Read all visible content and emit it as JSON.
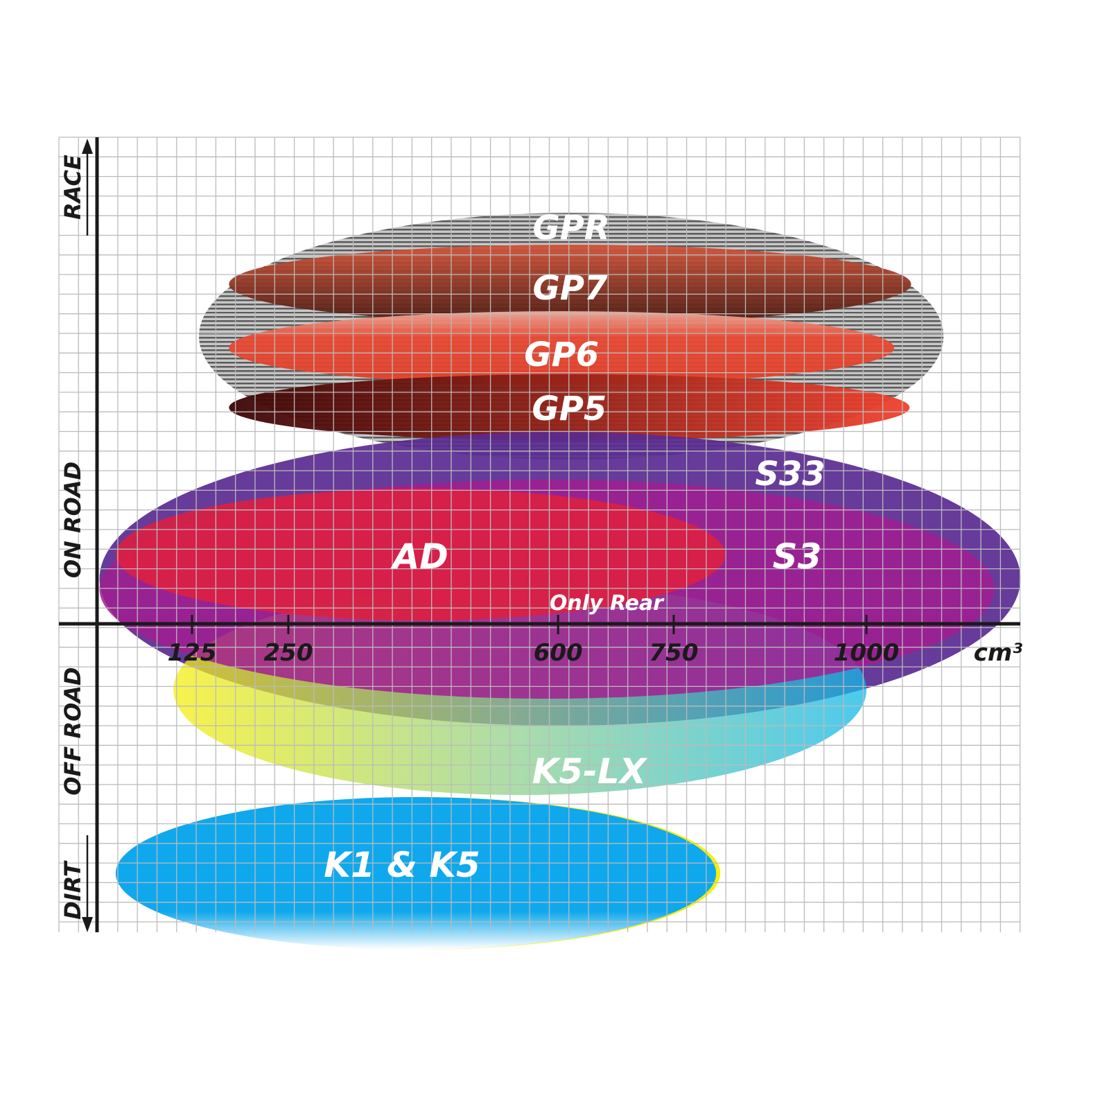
{
  "chart_data": {
    "type": "ellipse-range",
    "xlabel": "cm³",
    "x_ticks": [
      125,
      250,
      600,
      750,
      1000
    ],
    "y_categories": [
      "RACE",
      "ON ROAD",
      "OFF ROAD",
      "DIRT"
    ],
    "grid": true,
    "regions": [
      {
        "name": "GPR",
        "x_range": [
          134,
          1100
        ],
        "color": "#9a9a9a",
        "pattern": "hatched"
      },
      {
        "name": "GP7",
        "x_range": [
          173,
          1058
        ],
        "color": "#b8432f"
      },
      {
        "name": "GP6",
        "x_range": [
          173,
          1036
        ],
        "color": "#e5452f"
      },
      {
        "name": "GP5",
        "x_range": [
          173,
          1056
        ],
        "color": "#a01818"
      },
      {
        "name": "S33",
        "x_range": [
          5,
          1200
        ],
        "color": "#5a2a90"
      },
      {
        "name": "S3",
        "x_range": [
          5,
          1166
        ],
        "color": "#a0208f"
      },
      {
        "name": "AD",
        "x_range": [
          26,
          817
        ],
        "color": "#e01e3c"
      },
      {
        "name": "K5-LX",
        "x_range": [
          101,
          1000
        ],
        "color": "#18b8d8"
      },
      {
        "name": "K1 & K5",
        "x_range": [
          26,
          805
        ],
        "color": "#10a8ec"
      }
    ],
    "annotations": [
      "Only Rear"
    ]
  }
}
